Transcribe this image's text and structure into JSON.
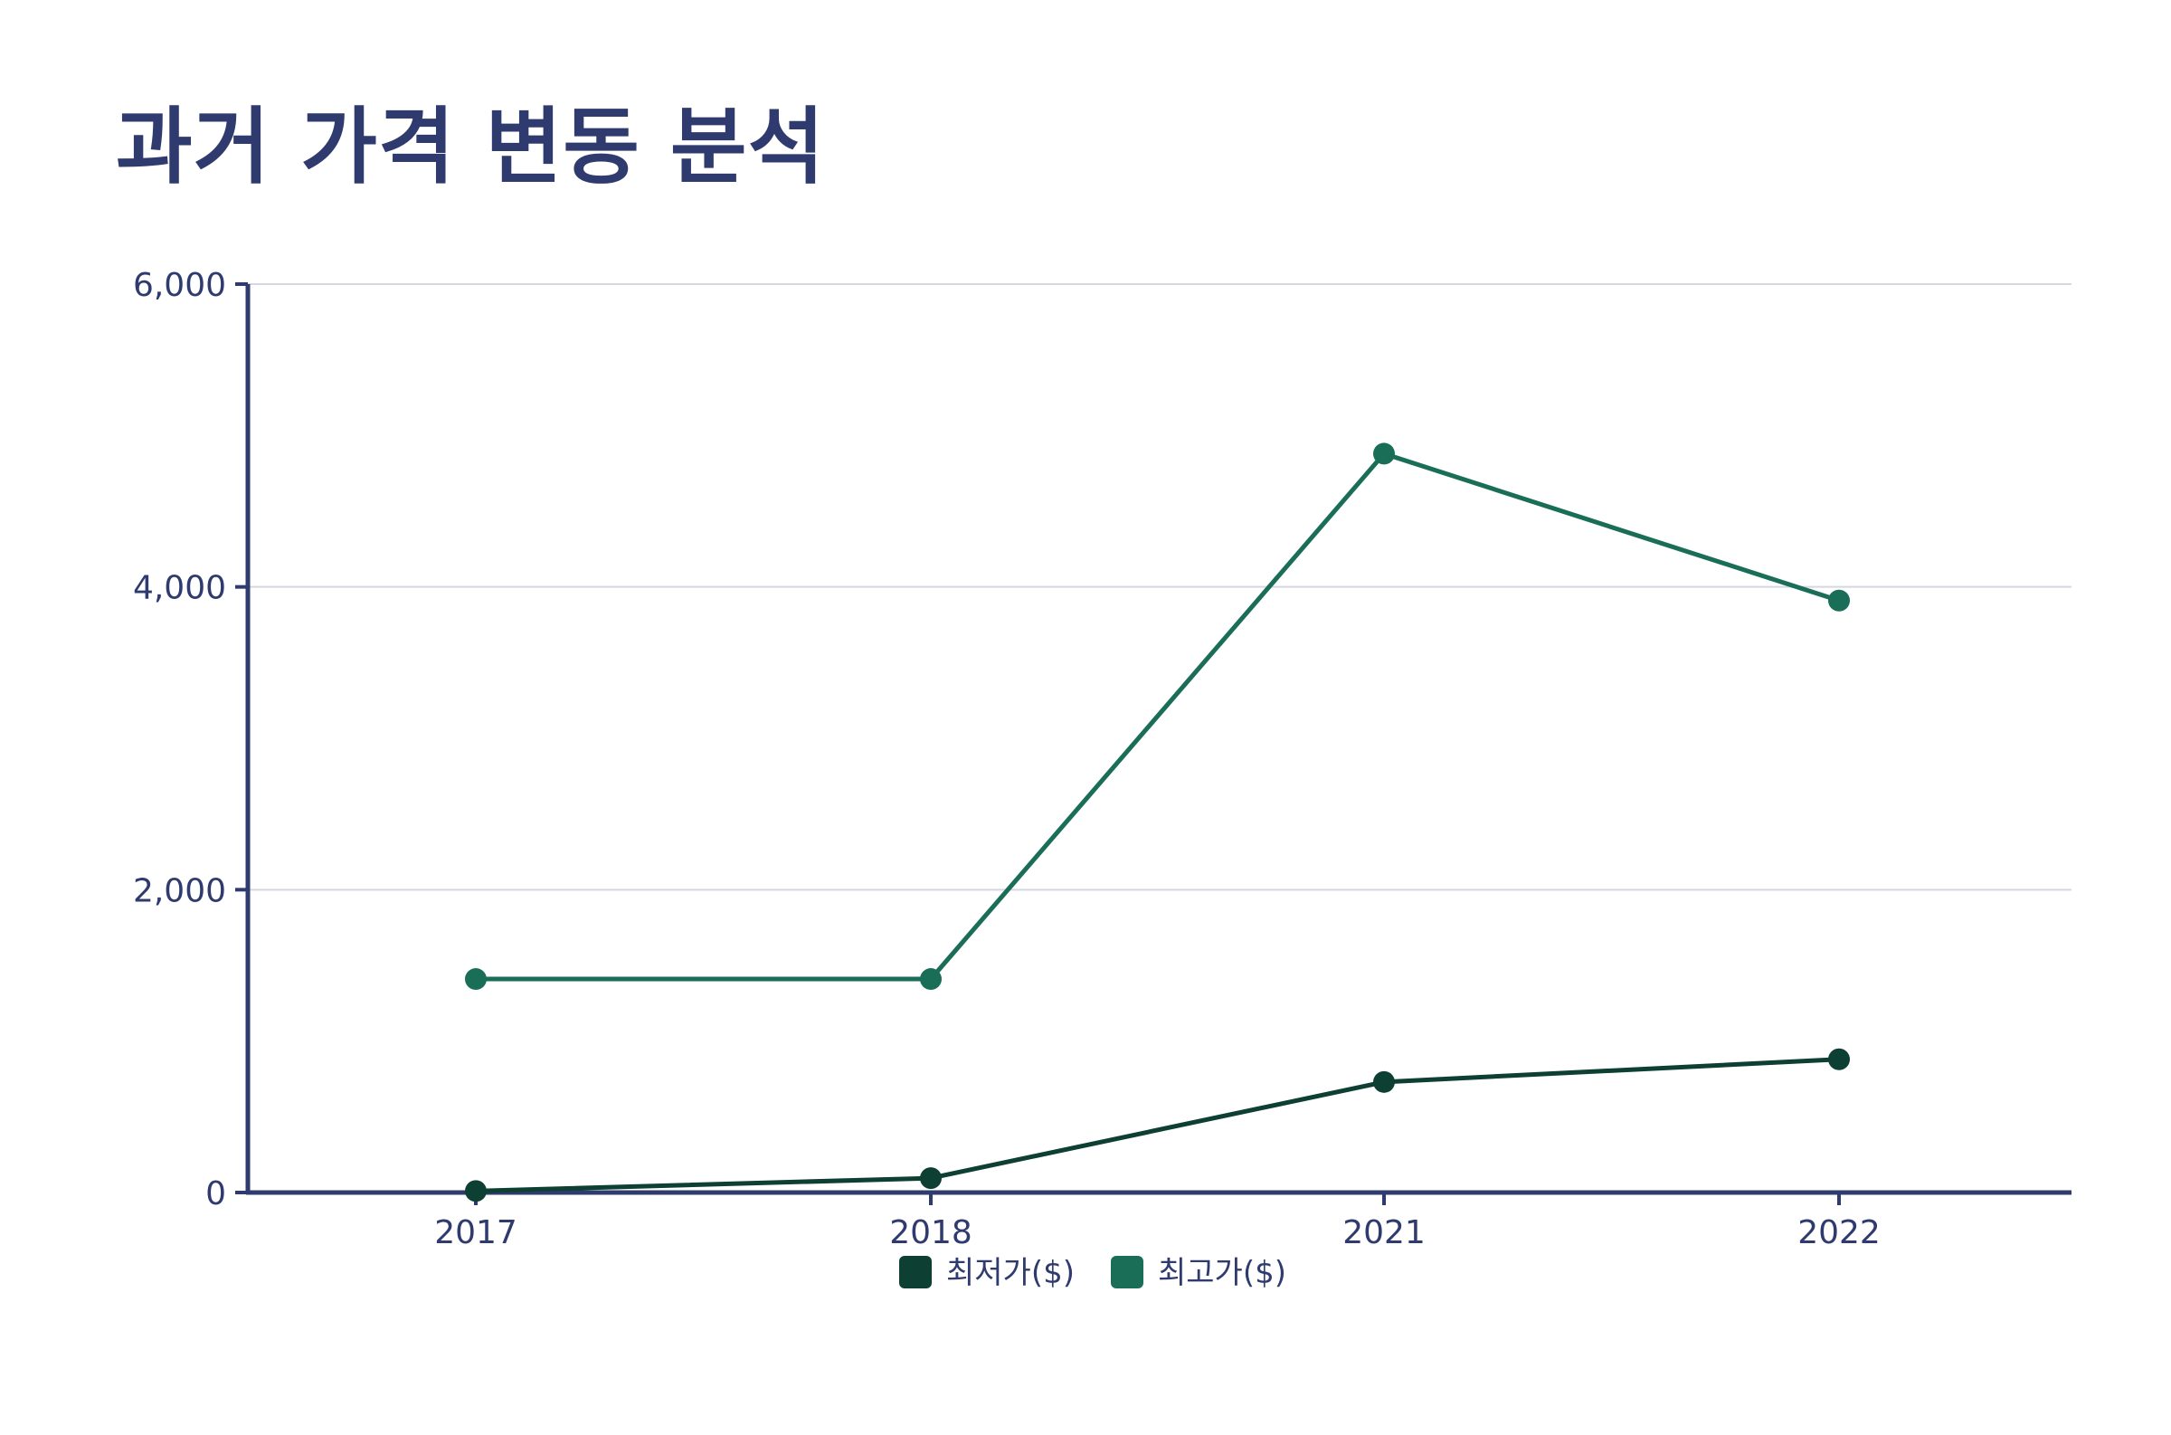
{
  "chart_data": {
    "type": "line",
    "title": "과거 가격 변동 분석",
    "xlabel": "",
    "ylabel": "",
    "categories": [
      "2017",
      "2018",
      "2021",
      "2022"
    ],
    "ylim": [
      0,
      6000
    ],
    "yticks": [
      0,
      2000,
      4000,
      6000
    ],
    "ytick_labels": [
      "0",
      "2,000",
      "4,000",
      "6,000"
    ],
    "grid": true,
    "legend_position": "bottom-center",
    "series": [
      {
        "name": "최저가($)",
        "color": "#0d3f33",
        "values": [
          10,
          95,
          730,
          880
        ]
      },
      {
        "name": "최고가($)",
        "color": "#1a6e58",
        "values": [
          1410,
          1410,
          4880,
          3910
        ]
      }
    ],
    "colors": {
      "axis": "#2f3b6e",
      "grid": "#d6d8e0",
      "text": "#2f3b6e"
    }
  }
}
